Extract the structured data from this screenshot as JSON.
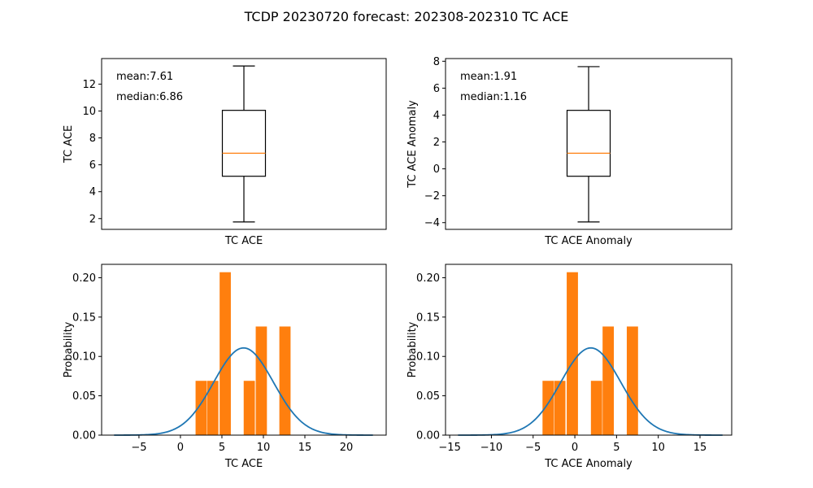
{
  "figure": {
    "title": "TCDP 20230720 forecast: 202308-202310 TC ACE"
  },
  "chart_data": [
    {
      "type": "box",
      "panel": "top-left",
      "xlabel": "TC ACE",
      "ylabel": "TC ACE",
      "ylim": [
        1.2,
        13.9
      ],
      "yticks": [
        2,
        4,
        6,
        8,
        10,
        12
      ],
      "box": {
        "whisker_low": 1.75,
        "q1": 5.15,
        "median": 6.86,
        "q3": 10.05,
        "whisker_high": 13.35
      },
      "annotations": [
        "mean:7.61",
        "median:6.86"
      ]
    },
    {
      "type": "box",
      "panel": "top-right",
      "xlabel": "TC ACE Anomaly",
      "ylabel": "TC ACE Anomaly",
      "ylim": [
        -4.5,
        8.2
      ],
      "yticks": [
        -4,
        -2,
        0,
        2,
        4,
        6,
        8
      ],
      "box": {
        "whisker_low": -3.95,
        "q1": -0.55,
        "median": 1.16,
        "q3": 4.35,
        "whisker_high": 7.6
      },
      "annotations": [
        "mean:1.91",
        "median:1.16"
      ]
    },
    {
      "type": "bar",
      "panel": "bottom-left",
      "xlabel": "TC ACE",
      "ylabel": "Probability",
      "xlim": [
        -9.5,
        24.8
      ],
      "ylim": [
        0,
        0.217
      ],
      "xticks": [
        -5,
        0,
        5,
        10,
        15,
        20
      ],
      "yticks": [
        0.0,
        0.05,
        0.1,
        0.15,
        0.2
      ],
      "bars": [
        {
          "x": 2.5,
          "width": 1.35,
          "value": 0.069
        },
        {
          "x": 3.9,
          "width": 1.35,
          "value": 0.069
        },
        {
          "x": 5.4,
          "width": 1.35,
          "value": 0.207
        },
        {
          "x": 8.3,
          "width": 1.35,
          "value": 0.069
        },
        {
          "x": 9.75,
          "width": 1.35,
          "value": 0.138
        },
        {
          "x": 12.6,
          "width": 1.35,
          "value": 0.138
        }
      ],
      "curve": {
        "type": "normal",
        "mean": 7.61,
        "std": 3.6,
        "x_range": [
          -8,
          23.2
        ]
      },
      "colors": {
        "bars": "#ff7f0e",
        "curve": "#1f77b4"
      }
    },
    {
      "type": "bar",
      "panel": "bottom-right",
      "xlabel": "TC ACE Anomaly",
      "ylabel": "Probability",
      "xlim": [
        -15.5,
        18.8
      ],
      "ylim": [
        0,
        0.217
      ],
      "xticks": [
        -15,
        -10,
        -5,
        0,
        5,
        10,
        15
      ],
      "yticks": [
        0.0,
        0.05,
        0.1,
        0.15,
        0.2
      ],
      "bars": [
        {
          "x": -3.2,
          "width": 1.35,
          "value": 0.069
        },
        {
          "x": -1.8,
          "width": 1.35,
          "value": 0.069
        },
        {
          "x": -0.3,
          "width": 1.35,
          "value": 0.207
        },
        {
          "x": 2.6,
          "width": 1.35,
          "value": 0.069
        },
        {
          "x": 4.0,
          "width": 1.35,
          "value": 0.138
        },
        {
          "x": 6.9,
          "width": 1.35,
          "value": 0.138
        }
      ],
      "curve": {
        "type": "normal",
        "mean": 1.91,
        "std": 3.6,
        "x_range": [
          -14,
          17.7
        ]
      },
      "colors": {
        "bars": "#ff7f0e",
        "curve": "#1f77b4"
      }
    }
  ],
  "colors": {
    "box": "#000000",
    "median_line": "#ff7f0e"
  }
}
